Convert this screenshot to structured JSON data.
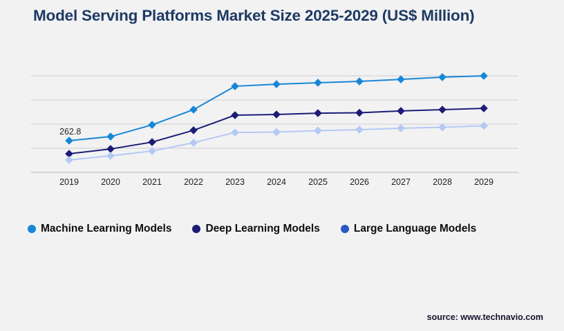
{
  "page": {
    "background_color": "#f2f2f3"
  },
  "source": {
    "text": "source: www.technavio.com"
  },
  "chart_data": {
    "type": "line",
    "title": "Model Serving Platforms Market Size 2025-2029 (US$ Million)",
    "title_color": "#1e3a63",
    "xlabel": "",
    "ylabel": "",
    "x": [
      2019,
      2020,
      2021,
      2022,
      2023,
      2024,
      2025,
      2026,
      2027,
      2028,
      2029
    ],
    "series": [
      {
        "name": "Machine Learning Models",
        "line_color": "#1787d6",
        "legend_color": "#1787d6",
        "marker": "diamond",
        "values": [
          262.8,
          297,
          394,
          520,
          714,
          731,
          743,
          754,
          771,
          789,
          800
        ]
      },
      {
        "name": "Deep Learning Models",
        "line_color": "#1c1c78",
        "legend_color": "#1c1c74",
        "marker": "diamond",
        "values": [
          154,
          194,
          251,
          349,
          474,
          480,
          491,
          494,
          509,
          520,
          531
        ]
      },
      {
        "name": "Large Language Models",
        "line_color": "#b3c9f3",
        "legend_color": "#2b59c3",
        "marker": "diamond",
        "values": [
          103,
          137,
          177,
          246,
          331,
          334,
          346,
          354,
          366,
          374,
          386
        ]
      }
    ],
    "annotations": [
      {
        "text": "262.8",
        "series_index": 0,
        "point_index": 0,
        "color": "#262626"
      }
    ],
    "ylim": [
      0,
      800
    ],
    "y_gridline_step": 200,
    "y_axis_labels_visible": false,
    "grid": "horizontal",
    "gridline_color": "#cecfd3",
    "baseline_color": "#b3b5b9",
    "legend_position": "bottom"
  }
}
